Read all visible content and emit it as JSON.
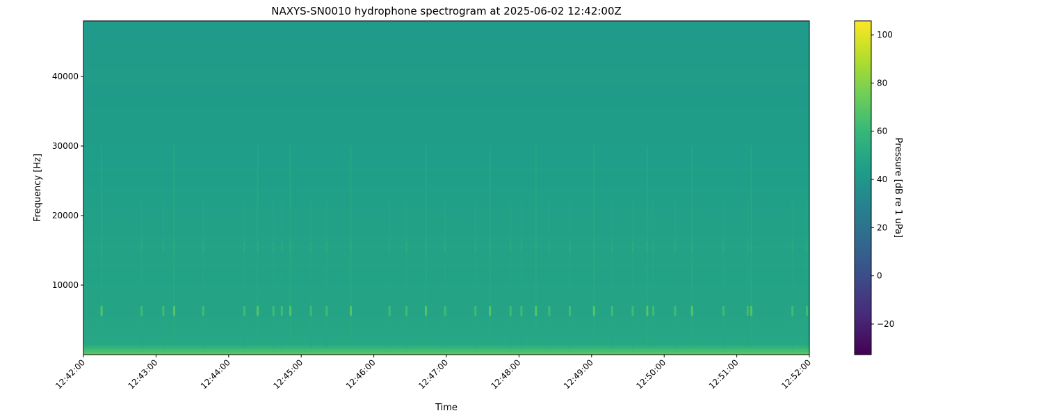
{
  "chart_data": {
    "type": "heatmap",
    "title": "NAXYS-SN0010 hydrophone spectrogram at 2025-06-02 12:42:00Z",
    "xlabel": "Time",
    "ylabel": "Frequency [Hz]",
    "colorbar_label": "Pressure [dB re 1 uPa]",
    "colormap": "viridis",
    "colormap_stops": [
      "#440154",
      "#482878",
      "#3e4989",
      "#31688e",
      "#26828e",
      "#1f9e89",
      "#35b779",
      "#6ece58",
      "#b5de2b",
      "#fde725"
    ],
    "xlim": [
      "12:42:00",
      "12:52:00"
    ],
    "ylim": [
      0,
      48000
    ],
    "clim": [
      -32.7,
      105.8
    ],
    "x_ticks": [
      "12:42:00",
      "12:43:00",
      "12:44:00",
      "12:45:00",
      "12:46:00",
      "12:47:00",
      "12:48:00",
      "12:49:00",
      "12:50:00",
      "12:51:00",
      "12:52:00"
    ],
    "y_ticks": [
      10000,
      20000,
      30000,
      40000
    ],
    "colorbar_ticks": [
      -20,
      0,
      20,
      40,
      60,
      80,
      100
    ],
    "grid": false,
    "background_profile_db": [
      [
        0,
        72
      ],
      [
        400,
        66
      ],
      [
        1000,
        58
      ],
      [
        1500,
        50
      ],
      [
        6000,
        48
      ],
      [
        13000,
        47
      ],
      [
        20000,
        46
      ],
      [
        30000,
        44
      ],
      [
        40000,
        43
      ],
      [
        48000,
        42
      ]
    ],
    "tonal_lines": [
      {
        "freq": 6300,
        "db": 62
      },
      {
        "freq": 13000,
        "db": 50
      },
      {
        "freq": 15500,
        "db": 51
      },
      {
        "freq": 39500,
        "db": 46
      }
    ],
    "transients": [
      "12:42:15",
      "12:42:48",
      "12:43:06",
      "12:43:15",
      "12:43:39",
      "12:44:13",
      "12:44:24",
      "12:44:37",
      "12:44:44",
      "12:44:51",
      "12:45:08",
      "12:45:21",
      "12:45:41",
      "12:46:13",
      "12:46:27",
      "12:46:43",
      "12:46:59",
      "12:47:24",
      "12:47:36",
      "12:47:53",
      "12:48:02",
      "12:48:14",
      "12:48:25",
      "12:48:42",
      "12:49:02",
      "12:49:17",
      "12:49:34",
      "12:49:46",
      "12:49:51",
      "12:50:09",
      "12:50:23",
      "12:50:49",
      "12:51:09",
      "12:51:12",
      "12:51:46",
      "12:51:58"
    ]
  }
}
